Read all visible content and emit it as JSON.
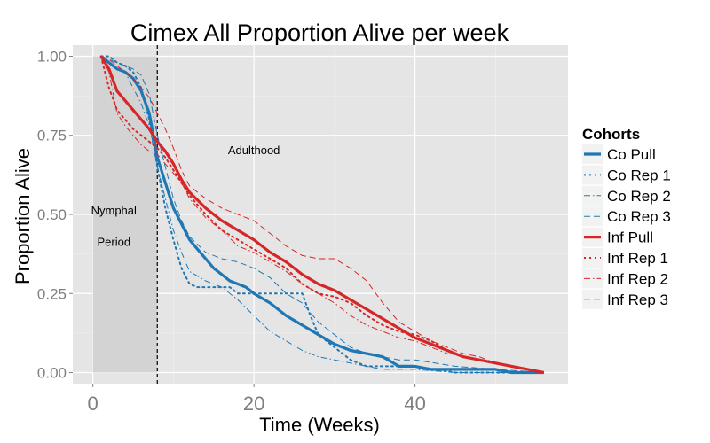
{
  "chart_data": {
    "type": "line",
    "title": "Cimex All Proportion Alive per week",
    "xlabel": "Time (Weeks)",
    "ylabel": "Proportion Alive",
    "xlim": [
      -2.5,
      59
    ],
    "ylim": [
      -0.035,
      1.035
    ],
    "x_ticks": [
      0,
      20,
      40
    ],
    "x_tick_labels": [
      "0",
      "20",
      "40"
    ],
    "y_ticks": [
      0,
      0.25,
      0.5,
      0.75,
      1.0
    ],
    "y_tick_labels": [
      "0.00",
      "0.25",
      "0.50",
      "0.75",
      "1.00"
    ],
    "grid": true,
    "background": "#e5e5e5",
    "shaded_region": {
      "x": [
        0,
        8
      ],
      "y": [
        0,
        1
      ],
      "color": "#d3d3d3"
    },
    "vline": {
      "x": 8,
      "style": "dashed",
      "color": "#000000"
    },
    "annotations": [
      {
        "text": "Nymphal",
        "x": 2.6,
        "y": 0.5
      },
      {
        "text": "Period",
        "x": 2.6,
        "y": 0.4
      },
      {
        "text": "Adulthood",
        "x": 20,
        "y": 0.69
      }
    ],
    "legend": {
      "title": "Cohorts",
      "position": "right"
    },
    "series": [
      {
        "name": "Co Pull",
        "color": "#1f78b4",
        "style": "solid",
        "width": 3.2,
        "x": [
          1,
          2,
          3,
          4,
          5,
          6,
          7,
          8,
          9,
          10,
          11,
          12,
          13,
          14,
          15,
          16,
          17,
          18,
          19,
          20,
          22,
          24,
          26,
          28,
          30,
          32,
          34,
          36,
          38,
          40,
          42,
          44,
          46,
          48,
          50,
          52,
          54,
          56
        ],
        "y": [
          1.0,
          0.98,
          0.96,
          0.95,
          0.93,
          0.89,
          0.82,
          0.68,
          0.6,
          0.52,
          0.47,
          0.42,
          0.39,
          0.36,
          0.33,
          0.31,
          0.29,
          0.28,
          0.27,
          0.25,
          0.22,
          0.18,
          0.15,
          0.12,
          0.09,
          0.07,
          0.06,
          0.05,
          0.02,
          0.02,
          0.01,
          0.01,
          0.01,
          0.01,
          0.01,
          0.0,
          0.0,
          0.0
        ]
      },
      {
        "name": "Co Rep 1",
        "color": "#1f78b4",
        "style": "dotted",
        "width": 2,
        "x": [
          1,
          2,
          3,
          4,
          5,
          6,
          7,
          8,
          9,
          10,
          11,
          12,
          13,
          15,
          17,
          18,
          19,
          20,
          22,
          24,
          26,
          27,
          28,
          30,
          32,
          34,
          38,
          40,
          45,
          50,
          56
        ],
        "y": [
          1.0,
          1.0,
          0.98,
          0.97,
          0.95,
          0.9,
          0.8,
          0.65,
          0.52,
          0.42,
          0.33,
          0.28,
          0.27,
          0.27,
          0.27,
          0.25,
          0.25,
          0.25,
          0.25,
          0.25,
          0.25,
          0.18,
          0.12,
          0.08,
          0.04,
          0.02,
          0.02,
          0.02,
          0.0,
          0.0,
          0.0
        ]
      },
      {
        "name": "Co Rep 2",
        "color": "#1f78b4",
        "style": "dashdot",
        "width": 1,
        "x": [
          1,
          2,
          3,
          4,
          5,
          6,
          7,
          8,
          9,
          10,
          11,
          12,
          14,
          16,
          18,
          20,
          22,
          24,
          26,
          28,
          30,
          32,
          34,
          36,
          40,
          45,
          50,
          56
        ],
        "y": [
          1.0,
          0.98,
          0.96,
          0.95,
          0.9,
          0.85,
          0.78,
          0.65,
          0.55,
          0.45,
          0.38,
          0.32,
          0.29,
          0.27,
          0.23,
          0.18,
          0.13,
          0.1,
          0.07,
          0.05,
          0.04,
          0.03,
          0.02,
          0.01,
          0.01,
          0.0,
          0.0,
          0.0
        ]
      },
      {
        "name": "Co Rep 3",
        "color": "#1f78b4",
        "style": "dashed",
        "width": 1,
        "x": [
          1,
          2,
          3,
          4,
          5,
          6,
          7,
          8,
          9,
          10,
          11,
          12,
          14,
          16,
          18,
          20,
          22,
          24,
          26,
          28,
          30,
          32,
          34,
          36,
          38,
          40,
          45,
          50,
          56
        ],
        "y": [
          1.0,
          0.99,
          0.98,
          0.97,
          0.96,
          0.94,
          0.88,
          0.75,
          0.65,
          0.55,
          0.48,
          0.43,
          0.38,
          0.36,
          0.35,
          0.33,
          0.3,
          0.25,
          0.22,
          0.16,
          0.12,
          0.08,
          0.06,
          0.05,
          0.04,
          0.04,
          0.02,
          0.01,
          0.0
        ]
      },
      {
        "name": "Inf Pull",
        "color": "#d62728",
        "style": "solid",
        "width": 3.2,
        "x": [
          1,
          2,
          3,
          4,
          5,
          6,
          7,
          8,
          9,
          10,
          11,
          12,
          14,
          16,
          18,
          20,
          22,
          24,
          26,
          28,
          30,
          32,
          34,
          36,
          38,
          40,
          42,
          44,
          46,
          48,
          50,
          52,
          54,
          56
        ],
        "y": [
          1.0,
          0.96,
          0.89,
          0.86,
          0.83,
          0.8,
          0.77,
          0.73,
          0.7,
          0.66,
          0.61,
          0.57,
          0.52,
          0.48,
          0.45,
          0.42,
          0.38,
          0.35,
          0.31,
          0.28,
          0.26,
          0.23,
          0.2,
          0.17,
          0.14,
          0.11,
          0.09,
          0.07,
          0.05,
          0.04,
          0.03,
          0.02,
          0.01,
          0.0
        ]
      },
      {
        "name": "Inf Rep 1",
        "color": "#d62728",
        "style": "dotted",
        "width": 2,
        "x": [
          1,
          2,
          3,
          4,
          5,
          6,
          7,
          8,
          9,
          10,
          11,
          12,
          14,
          16,
          18,
          20,
          22,
          24,
          26,
          28,
          30,
          32,
          34,
          36,
          38,
          40,
          42,
          44,
          46,
          48,
          50,
          52,
          54,
          56
        ],
        "y": [
          1.0,
          0.9,
          0.83,
          0.8,
          0.77,
          0.75,
          0.73,
          0.71,
          0.68,
          0.64,
          0.6,
          0.56,
          0.5,
          0.45,
          0.42,
          0.39,
          0.36,
          0.33,
          0.28,
          0.25,
          0.24,
          0.22,
          0.18,
          0.15,
          0.13,
          0.12,
          0.1,
          0.07,
          0.05,
          0.04,
          0.03,
          0.02,
          0.01,
          0.0
        ]
      },
      {
        "name": "Inf Rep 2",
        "color": "#d62728",
        "style": "dashdot",
        "width": 1,
        "x": [
          1,
          2,
          3,
          4,
          5,
          6,
          7,
          8,
          9,
          10,
          11,
          12,
          14,
          16,
          18,
          20,
          22,
          24,
          26,
          28,
          30,
          32,
          34,
          36,
          38,
          40,
          42,
          44,
          46,
          48,
          50,
          52,
          54,
          56
        ],
        "y": [
          1.0,
          0.95,
          0.82,
          0.78,
          0.75,
          0.72,
          0.7,
          0.69,
          0.66,
          0.63,
          0.6,
          0.55,
          0.49,
          0.45,
          0.4,
          0.38,
          0.35,
          0.32,
          0.28,
          0.25,
          0.22,
          0.18,
          0.15,
          0.13,
          0.11,
          0.1,
          0.08,
          0.06,
          0.05,
          0.04,
          0.03,
          0.02,
          0.01,
          0.0
        ]
      },
      {
        "name": "Inf Rep 3",
        "color": "#d62728",
        "style": "dashed",
        "width": 1,
        "x": [
          1,
          2,
          3,
          4,
          5,
          6,
          7,
          8,
          9,
          10,
          11,
          12,
          14,
          16,
          18,
          20,
          22,
          24,
          26,
          28,
          30,
          32,
          34,
          36,
          38,
          40,
          42,
          44,
          46,
          48,
          50,
          52,
          54,
          56
        ],
        "y": [
          1.0,
          0.99,
          0.97,
          0.95,
          0.93,
          0.9,
          0.87,
          0.82,
          0.77,
          0.71,
          0.64,
          0.59,
          0.55,
          0.52,
          0.5,
          0.48,
          0.44,
          0.4,
          0.37,
          0.36,
          0.36,
          0.33,
          0.29,
          0.22,
          0.16,
          0.13,
          0.1,
          0.08,
          0.06,
          0.05,
          0.03,
          0.02,
          0.01,
          0.0
        ]
      }
    ]
  }
}
